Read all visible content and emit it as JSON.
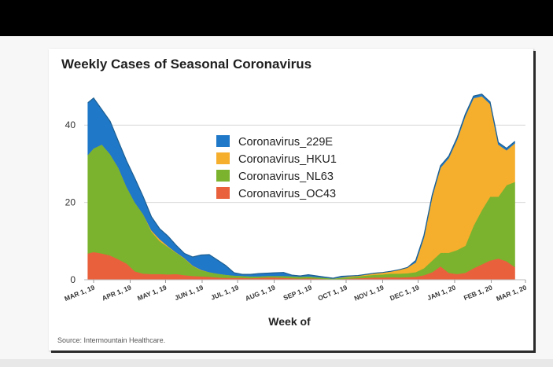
{
  "chart_data": {
    "type": "area",
    "stacked": true,
    "title": "Weekly Cases of Seasonal Coronavirus",
    "xlabel": "Week of",
    "ylabel": "",
    "ylim": [
      0,
      50
    ],
    "yticks": [
      0,
      20,
      40
    ],
    "x_start": "MAR 1, 19",
    "x_end": "MAR 1, 20",
    "xtick_labels": [
      "MAR 1, 19",
      "APR 1, 19",
      "MAY 1, 19",
      "JUN 1, 19",
      "JUL 1, 19",
      "AUG 1, 19",
      "SEP 1, 19",
      "OCT 1, 19",
      "NOV 1, 19",
      "DEC 1, 19",
      "JAN 1, 20",
      "FEB 1, 20",
      "MAR 1, 20"
    ],
    "xtick_weeks": [
      0,
      4.43,
      8.71,
      13.14,
      17.43,
      21.86,
      26.29,
      30.57,
      35,
      39.29,
      43.71,
      48.14,
      52.29
    ],
    "weeks": [
      -0.7,
      0,
      1,
      2,
      3,
      4,
      5,
      6,
      7,
      8,
      9,
      10,
      11,
      12,
      13,
      14,
      15,
      16,
      17,
      18,
      19,
      20,
      21,
      22,
      23,
      24,
      25,
      26,
      27,
      28,
      29,
      30,
      31,
      32,
      33,
      34,
      35,
      36,
      37,
      38,
      39,
      40,
      41,
      42,
      43,
      44,
      45,
      46,
      47,
      48,
      49,
      50,
      51
    ],
    "legend_position": "center-top",
    "series": [
      {
        "name": "Coronavirus_OC43",
        "color": "#e8613c",
        "values": [
          6.8,
          7.2,
          6.8,
          6.3,
          5.3,
          4.2,
          2.2,
          1.6,
          1.5,
          1.5,
          1.4,
          1.5,
          1.2,
          1.0,
          0.9,
          0.8,
          0.6,
          0.5,
          0.5,
          0.5,
          0.4,
          0.5,
          0.6,
          0.6,
          0.5,
          0.4,
          0.3,
          0.4,
          0.3,
          0.2,
          0.1,
          0.2,
          0.3,
          0.4,
          0.5,
          0.6,
          0.6,
          0.7,
          0.6,
          0.7,
          0.8,
          1.2,
          2.0,
          3.5,
          1.8,
          1.5,
          1.8,
          3.0,
          4.0,
          5.0,
          5.5,
          4.8,
          3.3
        ]
      },
      {
        "name": "Coronavirus_NL63",
        "color": "#7bb32e",
        "values": [
          25.5,
          26.8,
          28.2,
          26.2,
          23.7,
          19.8,
          17.8,
          15.4,
          11.0,
          8.5,
          7.1,
          5.5,
          4.3,
          2.6,
          1.6,
          1.2,
          1.0,
          0.8,
          0.6,
          0.5,
          0.5,
          0.4,
          0.4,
          0.4,
          0.5,
          0.5,
          0.5,
          0.5,
          0.4,
          0.3,
          0.2,
          0.3,
          0.4,
          0.5,
          0.6,
          0.7,
          0.8,
          0.9,
          1.0,
          1.0,
          1.2,
          1.8,
          3.0,
          3.5,
          5.2,
          6.2,
          7.0,
          11.0,
          14.0,
          16.5,
          16.0,
          19.7,
          22.0
        ]
      },
      {
        "name": "Coronavirus_HKU1",
        "color": "#f6ae2d",
        "values": [
          0,
          0,
          0,
          0,
          0,
          0,
          0,
          0,
          0.3,
          0.5,
          0.2,
          0.1,
          0.1,
          0.1,
          0.1,
          0,
          0,
          0,
          0,
          0,
          0,
          0,
          0,
          0,
          0,
          0,
          0,
          0,
          0,
          0,
          0,
          0.1,
          0.2,
          0.2,
          0.3,
          0.4,
          0.5,
          0.6,
          1.0,
          1.5,
          2.5,
          8.0,
          16.5,
          22.0,
          24.5,
          28.5,
          33.5,
          33.0,
          29.5,
          24.0,
          13.5,
          9.0,
          10.0
        ]
      },
      {
        "name": "Coronavirus_229E",
        "color": "#1f78c8",
        "values": [
          13.5,
          13.0,
          9.0,
          8.5,
          6.8,
          6.7,
          6.2,
          4.5,
          3.5,
          2.7,
          2.6,
          1.8,
          1.2,
          2.2,
          3.8,
          4.5,
          3.5,
          2.4,
          0.7,
          0.4,
          0.5,
          0.7,
          0.7,
          0.8,
          0.9,
          0.3,
          0.2,
          0.4,
          0.3,
          0.2,
          0.1,
          0.3,
          0.1,
          0,
          0,
          0,
          0,
          0,
          0,
          0,
          0.5,
          0.5,
          0.5,
          0.5,
          0.5,
          0.5,
          0.5,
          0.5,
          0.5,
          0.5,
          0.5,
          0.5,
          0.5
        ]
      }
    ],
    "legend_order": [
      "Coronavirus_229E",
      "Coronavirus_HKU1",
      "Coronavirus_NL63",
      "Coronavirus_OC43"
    ],
    "source": "Source: Intermountain Healthcare."
  }
}
